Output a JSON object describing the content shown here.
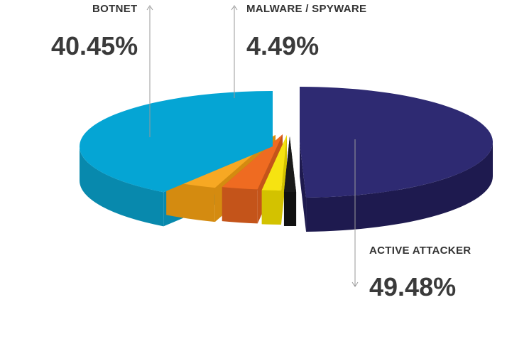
{
  "chart_data": {
    "type": "pie",
    "style": "3d-exploded",
    "slices": [
      {
        "label": "ACTIVE ATTACKER",
        "value": 49.48,
        "display": "49.48%",
        "color": "#2e2a72",
        "side_color": "#1e1a4f"
      },
      {
        "label": "",
        "value": 1.0,
        "display": "",
        "color": "#1a1a1a",
        "side_color": "#111111"
      },
      {
        "label": "",
        "value": 1.6,
        "display": "",
        "color": "#f6e311",
        "side_color": "#d3c200"
      },
      {
        "label": "",
        "value": 3.0,
        "display": "",
        "color": "#ef6b21",
        "side_color": "#c4541a"
      },
      {
        "label": "MALWARE / SPYWARE",
        "value": 4.49,
        "display": "4.49%",
        "color": "#f7a823",
        "side_color": "#d48b10"
      },
      {
        "label": "BOTNET",
        "value": 40.45,
        "display": "40.45%",
        "color": "#05a5d4",
        "side_color": "#0889ad"
      }
    ]
  },
  "labels": {
    "active_attacker": {
      "name": "ACTIVE ATTACKER",
      "value": "49.48%"
    },
    "botnet": {
      "name": "BOTNET",
      "value": "40.45%"
    },
    "malware": {
      "name": "MALWARE / SPYWARE",
      "value": "4.49%"
    }
  },
  "colors": {
    "background": "#ffffff",
    "label_text": "#333333",
    "leader_line": "#999999"
  }
}
